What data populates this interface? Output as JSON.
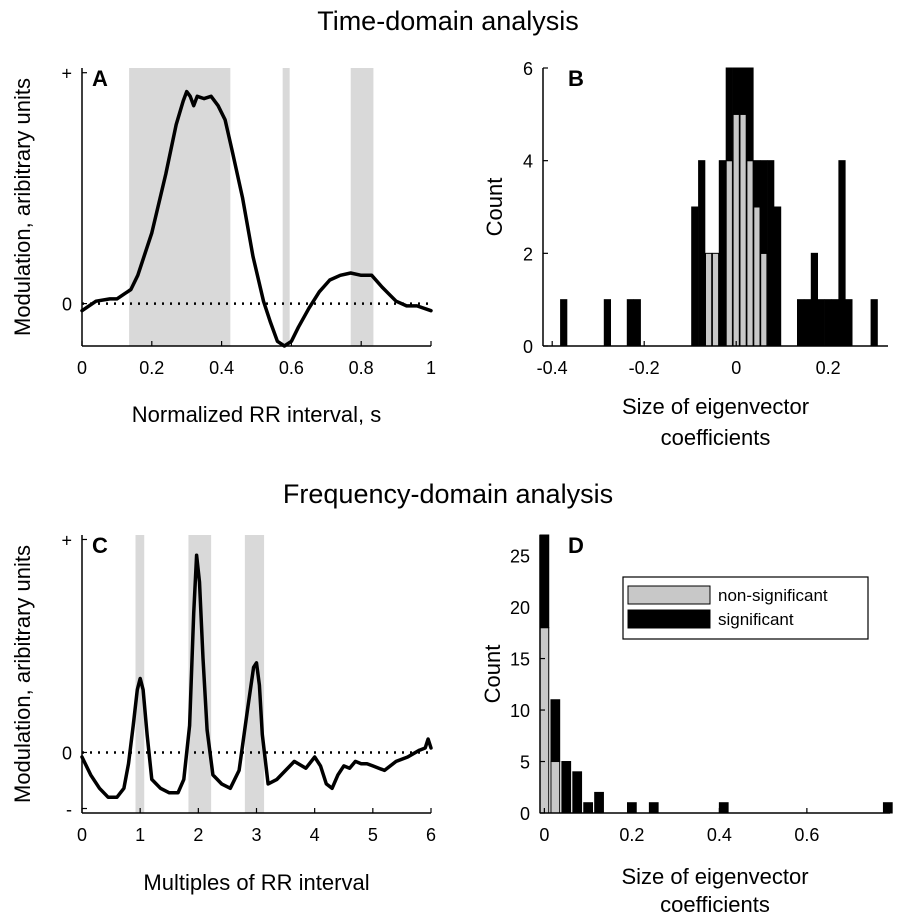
{
  "titles": {
    "time": "Time-domain analysis",
    "freq": "Frequency-domain analysis"
  },
  "colors": {
    "shade": "#d9d9d9",
    "significant": "#000000",
    "non_significant": "#c8c8c8",
    "line": "#000000"
  },
  "chart_data": [
    {
      "id": "A",
      "type": "line",
      "panel_label": "A",
      "xlabel": "Normalized RR interval, s",
      "ylabel": "Modulation, aribitrary units",
      "xlim": [
        0,
        1
      ],
      "ylim": [
        -0.18,
        1.0
      ],
      "xticks": [
        "0",
        "0.2",
        "0.4",
        "0.6",
        "0.8",
        "1"
      ],
      "xtick_values": [
        0,
        0.2,
        0.4,
        0.6,
        0.8,
        1
      ],
      "yticks": [
        "0",
        "+"
      ],
      "ytick_values": [
        0,
        0.98
      ],
      "baseline": 0,
      "shaded_regions": [
        [
          0.135,
          0.425
        ],
        [
          0.575,
          0.595
        ],
        [
          0.77,
          0.835
        ]
      ],
      "x": [
        0,
        0.04,
        0.08,
        0.1,
        0.12,
        0.14,
        0.16,
        0.2,
        0.24,
        0.27,
        0.29,
        0.3,
        0.31,
        0.32,
        0.33,
        0.35,
        0.37,
        0.39,
        0.41,
        0.43,
        0.46,
        0.49,
        0.52,
        0.54,
        0.56,
        0.58,
        0.6,
        0.62,
        0.65,
        0.68,
        0.71,
        0.74,
        0.77,
        0.8,
        0.83,
        0.86,
        0.88,
        0.9,
        0.93,
        0.96,
        1.0
      ],
      "y": [
        -0.03,
        0.01,
        0.02,
        0.02,
        0.04,
        0.06,
        0.12,
        0.3,
        0.55,
        0.76,
        0.86,
        0.9,
        0.88,
        0.84,
        0.88,
        0.87,
        0.88,
        0.84,
        0.78,
        0.65,
        0.45,
        0.2,
        0.01,
        -0.08,
        -0.16,
        -0.18,
        -0.16,
        -0.1,
        -0.02,
        0.05,
        0.1,
        0.12,
        0.13,
        0.12,
        0.12,
        0.07,
        0.04,
        0.01,
        -0.01,
        -0.01,
        -0.03
      ]
    },
    {
      "id": "B",
      "type": "bar",
      "stacked": true,
      "panel_label": "B",
      "xlabel": "Size of eigenvector coefficients",
      "ylabel": "Count",
      "xlim": [
        -0.42,
        0.33
      ],
      "ylim": [
        0,
        6
      ],
      "xticks": [
        "-0.4",
        "-0.2",
        "0",
        "0.2"
      ],
      "xtick_values": [
        -0.4,
        -0.2,
        0,
        0.2
      ],
      "yticks": [
        "0",
        "2",
        "4",
        "6"
      ],
      "ytick_values": [
        0,
        2,
        4,
        6
      ],
      "bin_width": 0.0135,
      "bin_centers": [
        -0.375,
        -0.28,
        -0.23,
        -0.215,
        -0.09,
        -0.075,
        -0.06,
        -0.045,
        -0.03,
        -0.015,
        0.0,
        0.015,
        0.03,
        0.045,
        0.06,
        0.075,
        0.09,
        0.14,
        0.155,
        0.17,
        0.185,
        0.2,
        0.215,
        0.23,
        0.245,
        0.3
      ],
      "series": [
        {
          "name": "non-significant",
          "values": [
            0,
            0,
            0,
            0,
            0,
            0,
            2,
            2,
            0,
            4,
            5,
            5,
            4,
            3,
            2,
            0,
            0,
            0,
            0,
            0,
            0,
            0,
            0,
            0,
            0,
            0
          ]
        },
        {
          "name": "significant",
          "values": [
            1,
            1,
            1,
            1,
            3,
            4,
            0,
            0,
            4,
            2,
            1,
            1,
            2,
            1,
            2,
            4,
            3,
            1,
            1,
            2,
            1,
            1,
            1,
            4,
            1,
            1
          ]
        }
      ]
    },
    {
      "id": "C",
      "type": "line",
      "panel_label": "C",
      "xlabel": "Multiples of RR interval",
      "ylabel": "Modulation, aribitrary units",
      "xlim": [
        0,
        6
      ],
      "ylim": [
        -0.27,
        0.97
      ],
      "xticks": [
        "0",
        "1",
        "2",
        "3",
        "4",
        "5",
        "6"
      ],
      "xtick_values": [
        0,
        1,
        2,
        3,
        4,
        5,
        6
      ],
      "yticks": [
        "-",
        "0",
        "+"
      ],
      "ytick_values": [
        -0.25,
        0,
        0.95
      ],
      "baseline": 0,
      "shaded_regions": [
        [
          0.92,
          1.07
        ],
        [
          1.83,
          2.22
        ],
        [
          2.8,
          3.13
        ]
      ],
      "x": [
        0,
        0.15,
        0.3,
        0.45,
        0.6,
        0.72,
        0.8,
        0.88,
        0.95,
        1.0,
        1.05,
        1.12,
        1.2,
        1.35,
        1.5,
        1.65,
        1.75,
        1.85,
        1.92,
        1.97,
        2.02,
        2.08,
        2.15,
        2.25,
        2.4,
        2.55,
        2.7,
        2.85,
        2.95,
        3.0,
        3.05,
        3.1,
        3.2,
        3.35,
        3.5,
        3.65,
        3.85,
        4.0,
        4.1,
        4.2,
        4.3,
        4.4,
        4.5,
        4.6,
        4.7,
        4.8,
        4.9,
        5.0,
        5.2,
        5.4,
        5.6,
        5.8,
        5.9,
        5.95,
        6.0
      ],
      "y": [
        -0.02,
        -0.1,
        -0.16,
        -0.2,
        -0.2,
        -0.16,
        -0.05,
        0.12,
        0.28,
        0.33,
        0.28,
        0.08,
        -0.12,
        -0.16,
        -0.18,
        -0.18,
        -0.12,
        0.12,
        0.62,
        0.88,
        0.76,
        0.42,
        0.1,
        -0.1,
        -0.14,
        -0.16,
        -0.08,
        0.2,
        0.38,
        0.4,
        0.3,
        0.08,
        -0.14,
        -0.12,
        -0.08,
        -0.04,
        -0.07,
        -0.02,
        -0.06,
        -0.14,
        -0.16,
        -0.1,
        -0.06,
        -0.07,
        -0.04,
        -0.05,
        -0.05,
        -0.06,
        -0.08,
        -0.04,
        -0.02,
        0.01,
        0.02,
        0.06,
        0.02
      ]
    },
    {
      "id": "D",
      "type": "bar",
      "stacked": true,
      "panel_label": "D",
      "xlabel": "Size of eigenvector coefficients",
      "ylabel": "Count",
      "xlim": [
        -0.01,
        0.79
      ],
      "ylim": [
        0,
        27
      ],
      "xticks": [
        "0",
        "0.2",
        "0.4",
        "0.6"
      ],
      "xtick_values": [
        0,
        0.2,
        0.4,
        0.6
      ],
      "yticks": [
        "0",
        "5",
        "10",
        "15",
        "20",
        "25"
      ],
      "ytick_values": [
        0,
        5,
        10,
        15,
        20,
        25
      ],
      "bin_width": 0.02,
      "bin_centers": [
        0.0,
        0.025,
        0.05,
        0.075,
        0.1,
        0.125,
        0.2,
        0.25,
        0.41,
        0.785
      ],
      "series": [
        {
          "name": "non-significant",
          "values": [
            18,
            5,
            0,
            0,
            0,
            0,
            0,
            0,
            0,
            0
          ]
        },
        {
          "name": "significant",
          "values": [
            9,
            6,
            5,
            4,
            1,
            2,
            1,
            1,
            1,
            1
          ]
        }
      ],
      "legend_position": "top-right",
      "legend": [
        {
          "label": "non-significant",
          "color": "#c8c8c8"
        },
        {
          "label": "significant",
          "color": "#000000"
        }
      ]
    }
  ]
}
